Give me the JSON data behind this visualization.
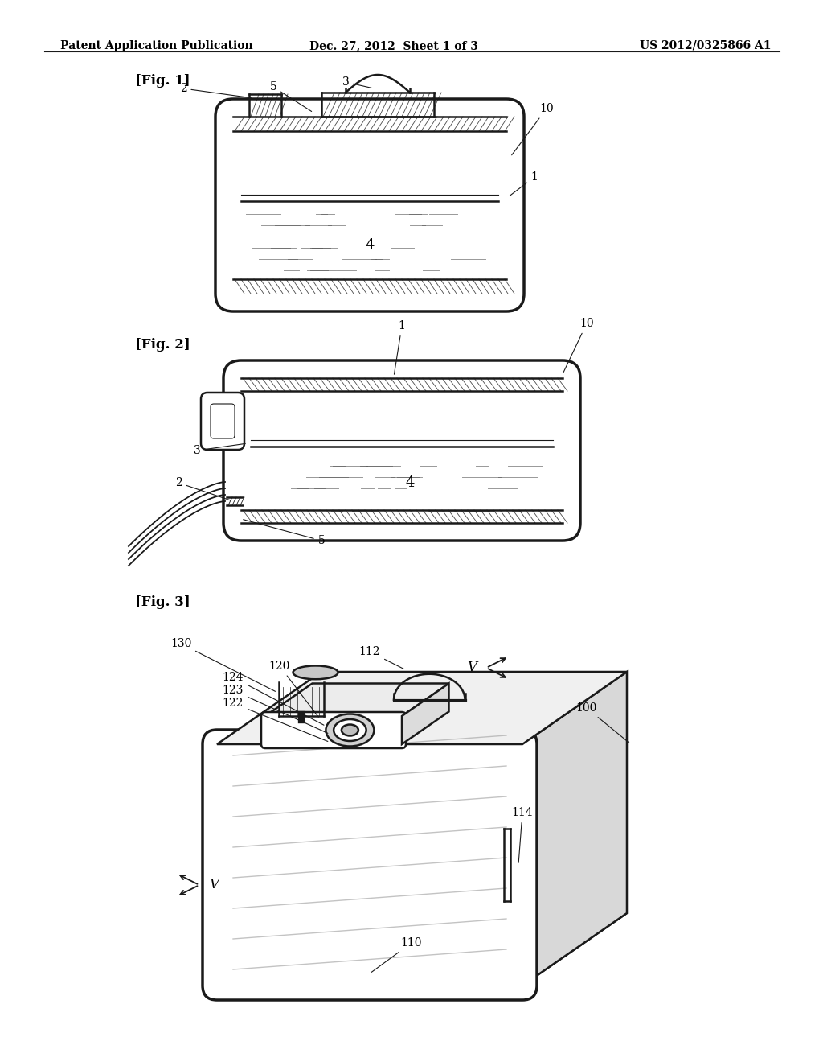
{
  "header_left": "Patent Application Publication",
  "header_center": "Dec. 27, 2012  Sheet 1 of 3",
  "header_right": "US 2012/0325866 A1",
  "fig1_label": "[Fig. 1]",
  "fig2_label": "[Fig. 2]",
  "fig3_label": "[Fig. 3]",
  "bg_color": "#ffffff",
  "line_color": "#1a1a1a",
  "gray_light": "#cccccc",
  "gray_mid": "#888888"
}
